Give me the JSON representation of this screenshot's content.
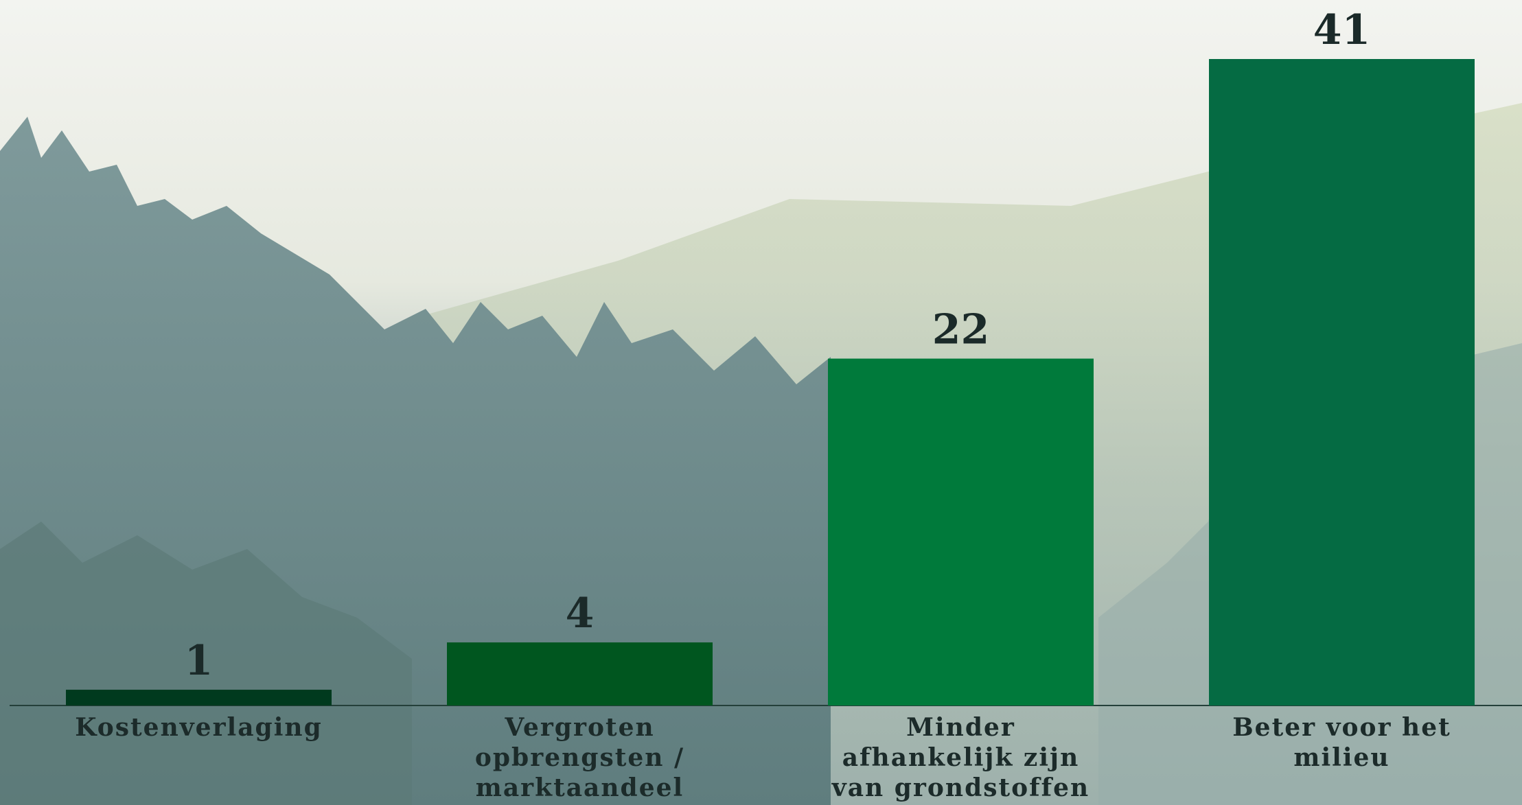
{
  "chart_data": {
    "type": "bar",
    "categories": [
      "Kostenverlaging",
      "Vergroten opbrengsten / marktaandeel",
      "Minder afhankelijk zijn van grondstoffen",
      "Beter voor het milieu"
    ],
    "values": [
      1,
      4,
      22,
      41
    ],
    "colors": [
      "#003a1e",
      "#00561f",
      "#007a3b",
      "#056b43"
    ]
  }
}
